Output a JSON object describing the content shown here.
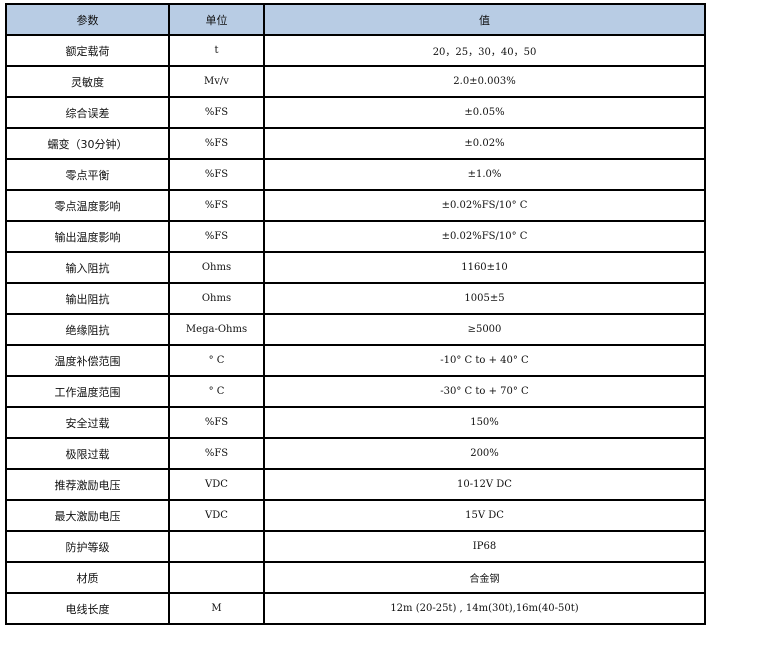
{
  "header": {
    "param": "参数",
    "unit": "单位",
    "value": "值"
  },
  "header_bg": "#b8cce4",
  "rows": [
    {
      "param": "额定载荷",
      "unit": "t",
      "value": "20，25，30，40，50"
    },
    {
      "param": "灵敏度",
      "unit": "Mv/v",
      "value": "2.0±0.003%"
    },
    {
      "param": "综合误差",
      "unit": "%FS",
      "value": "±0.05%"
    },
    {
      "param": "蠕变（30分钟）",
      "unit": "%FS",
      "value": "±0.02%"
    },
    {
      "param": "零点平衡",
      "unit": "%FS",
      "value": "±1.0%"
    },
    {
      "param": "零点温度影响",
      "unit": "%FS",
      "value": "±0.02%FS/10° C"
    },
    {
      "param": "输出温度影响",
      "unit": "%FS",
      "value": "±0.02%FS/10° C"
    },
    {
      "param": "输入阻抗",
      "unit": "Ohms",
      "value": "1160±10"
    },
    {
      "param": "输出阻抗",
      "unit": "Ohms",
      "value": "1005±5"
    },
    {
      "param": "绝缘阻抗",
      "unit": "Mega-Ohms",
      "value": "≥5000"
    },
    {
      "param": "温度补偿范围",
      "unit": "° C",
      "value": "-10° C to + 40° C"
    },
    {
      "param": "工作温度范围",
      "unit": "° C",
      "value": "-30° C to + 70° C"
    },
    {
      "param": "安全过载",
      "unit": "%FS",
      "value": "150%"
    },
    {
      "param": "极限过载",
      "unit": "%FS",
      "value": "200%"
    },
    {
      "param": "推荐激励电压",
      "unit": "VDC",
      "value": "10-12V DC"
    },
    {
      "param": "最大激励电压",
      "unit": "VDC",
      "value": "15V DC"
    },
    {
      "param": "防护等级",
      "unit": "",
      "value": "IP68"
    },
    {
      "param": "材质",
      "unit": "",
      "value": "合金钢"
    },
    {
      "param": "电线长度",
      "unit": "M",
      "value": "12m (20-25t) , 14m(30t),16m(40-50t)"
    }
  ]
}
